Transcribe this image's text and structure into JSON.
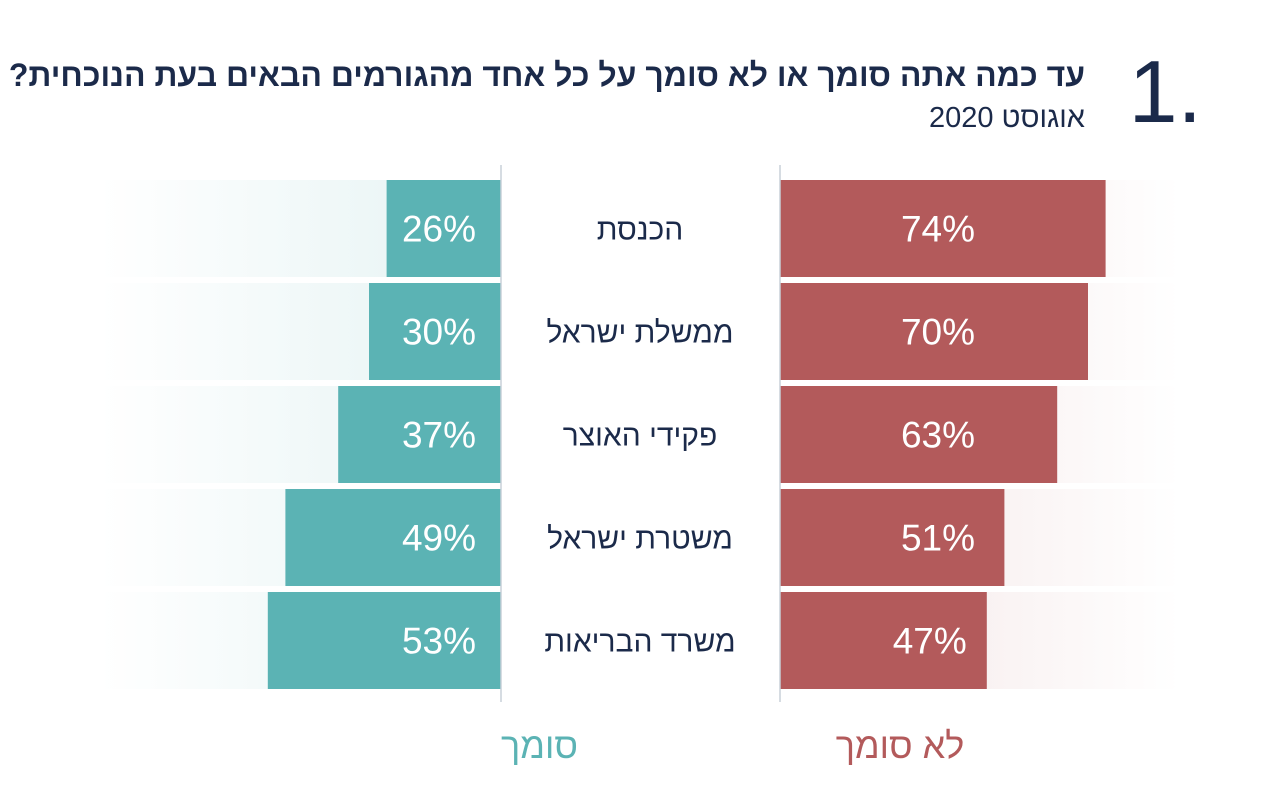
{
  "header": {
    "number": "1.",
    "title": "עד כמה אתה סומך או לא סומך על כל אחד מהגורמים הבאים בעת הנוכחית?",
    "subtitle": "אוגוסט 2020"
  },
  "colors": {
    "trust": "#5bb3b4",
    "distrust": "#b35a5b",
    "text_dark": "#1b2a4a",
    "divider": "#c8d0d8"
  },
  "chart_data": {
    "type": "bar",
    "categories": [
      "הכנסת",
      "ממשלת ישראל",
      "פקידי האוצר",
      "משטרת ישראל",
      "משרד הבריאות"
    ],
    "series": [
      {
        "name": "סומך",
        "values": [
          26,
          30,
          37,
          49,
          53
        ]
      },
      {
        "name": "לא סומך",
        "values": [
          74,
          70,
          63,
          51,
          47
        ]
      }
    ],
    "unit": "%",
    "ylim": [
      0,
      100
    ],
    "legend": [
      "סומך",
      "לא סומך"
    ]
  }
}
